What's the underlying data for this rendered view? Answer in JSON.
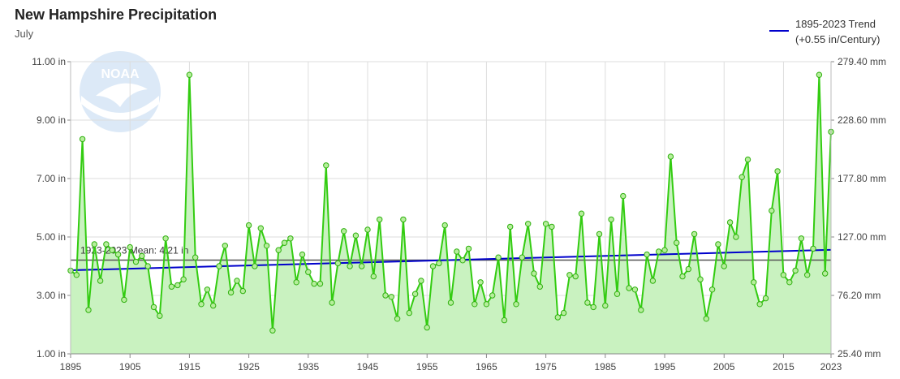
{
  "chart_data": {
    "type": "area",
    "title": "New Hampshire Precipitation",
    "subtitle": "July",
    "x_ticks": [
      "1895",
      "1905",
      "1915",
      "1925",
      "1935",
      "1945",
      "1955",
      "1965",
      "1975",
      "1985",
      "1995",
      "2005",
      "2015",
      "2023"
    ],
    "y_left_ticks": [
      "1.00 in",
      "3.00 in",
      "5.00 in",
      "7.00 in",
      "9.00 in",
      "11.00 in"
    ],
    "y_right_ticks": [
      "25.40 mm",
      "76.20 mm",
      "127.00 mm",
      "177.80 mm",
      "228.60 mm",
      "279.40 mm"
    ],
    "xlim": [
      1895,
      2023
    ],
    "ylim": [
      1,
      11
    ],
    "grid": true,
    "legend_position": "top-right",
    "series": [
      {
        "name": "July precipitation",
        "color": "#33cc11",
        "x_start": 1895,
        "values": [
          3.85,
          3.7,
          8.35,
          2.5,
          4.75,
          3.5,
          4.75,
          4.55,
          4.4,
          2.85,
          4.65,
          4.15,
          4.35,
          4.0,
          2.6,
          2.3,
          4.95,
          3.3,
          3.35,
          3.55,
          10.55,
          4.3,
          2.7,
          3.2,
          2.65,
          4.0,
          4.7,
          3.1,
          3.5,
          3.15,
          5.4,
          4.0,
          5.3,
          4.7,
          1.8,
          4.55,
          4.8,
          4.95,
          3.45,
          4.4,
          3.8,
          3.4,
          3.4,
          7.45,
          2.75,
          4.1,
          5.2,
          4.0,
          5.05,
          4.0,
          5.25,
          3.65,
          5.6,
          3.0,
          2.95,
          2.2,
          5.6,
          2.4,
          3.05,
          3.5,
          1.9,
          4.0,
          4.1,
          5.4,
          2.75,
          4.5,
          4.2,
          4.6,
          2.7,
          3.45,
          2.7,
          3.0,
          4.3,
          2.15,
          5.35,
          2.7,
          4.3,
          5.45,
          3.75,
          3.3,
          5.45,
          5.35,
          2.25,
          2.4,
          3.7,
          3.65,
          5.8,
          2.75,
          2.6,
          5.1,
          2.65,
          5.6,
          3.05,
          6.4,
          3.25,
          3.2,
          2.5,
          4.4,
          3.5,
          4.5,
          4.55,
          7.75,
          4.8,
          3.65,
          3.9,
          5.1,
          3.55,
          2.2,
          3.2,
          4.75,
          4.0,
          5.5,
          5.0,
          7.05,
          7.65,
          3.45,
          2.7,
          2.9,
          5.9,
          7.25,
          3.7,
          3.45,
          3.85,
          4.95,
          3.7,
          4.6,
          10.55,
          3.75,
          8.6
        ]
      },
      {
        "name": "1895-2023 Trend",
        "label_line2": "(+0.55 in/Century)",
        "color": "#0000cc",
        "start_value": 3.86,
        "end_value": 4.56
      },
      {
        "name": "1923-2023 Mean: 4.21 in",
        "color": "#555555",
        "value": 4.21
      }
    ]
  },
  "logo": {
    "text": "NOAA"
  }
}
